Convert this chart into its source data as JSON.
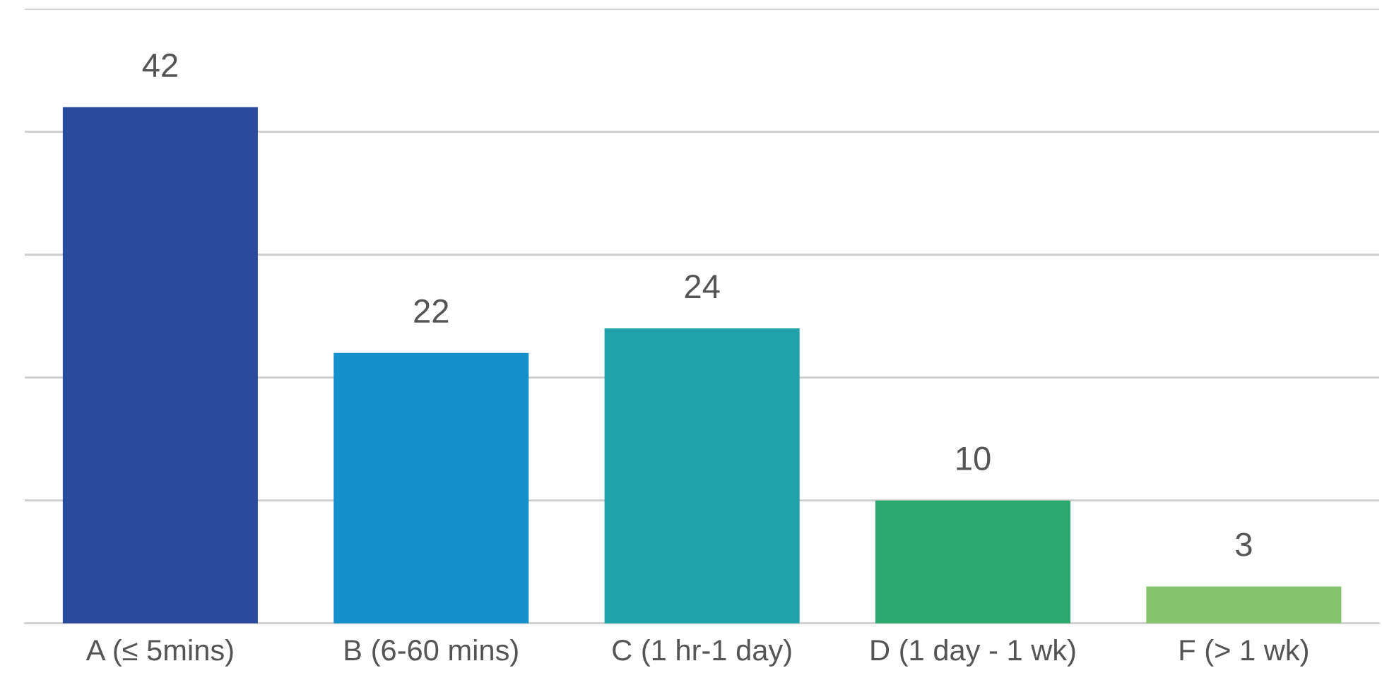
{
  "chart_data": {
    "type": "bar",
    "categories": [
      "A (≤ 5mins)",
      "B (6-60 mins)",
      "C (1 hr-1 day)",
      "D (1 day - 1 wk)",
      "F (> 1 wk)"
    ],
    "values": [
      42,
      22,
      24,
      10,
      3
    ],
    "colors": [
      "#2a4a9e",
      "#1590cc",
      "#1fa2a8",
      "#2aaa70",
      "#84c46c"
    ],
    "ylim": [
      0,
      50
    ],
    "yticks": [
      {
        "value": 0,
        "label": null
      },
      {
        "value": 10,
        "label": null
      },
      {
        "value": 20,
        "label": null
      },
      {
        "value": 30,
        "label": null
      },
      {
        "value": 40,
        "label": null
      },
      {
        "value": 50,
        "label": null
      }
    ],
    "grid": "y",
    "tick_labels": "x",
    "data_labels": true
  }
}
